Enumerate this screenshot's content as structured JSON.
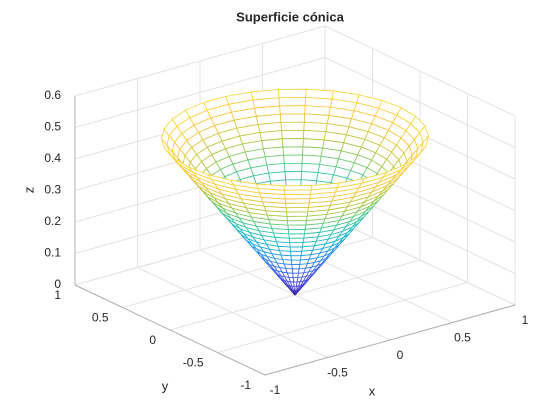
{
  "chart_data": {
    "type": "mesh",
    "title": "Superficie cónica",
    "xlabel": "x",
    "ylabel": "y",
    "zlabel": "z",
    "xlim": [
      -1,
      1
    ],
    "ylim": [
      -1,
      1
    ],
    "zlim": [
      0,
      0.6
    ],
    "xticks": [
      -1,
      -0.5,
      0,
      0.5,
      1
    ],
    "yticks": [
      -1,
      -0.5,
      0,
      0.5,
      1
    ],
    "zticks": [
      0,
      0.1,
      0.2,
      0.3,
      0.4,
      0.5,
      0.6
    ],
    "grid": true,
    "colormap": "parula",
    "surface": {
      "r_max": 0.85,
      "z_max": 0.5,
      "rings": 25,
      "segments": 30
    }
  }
}
